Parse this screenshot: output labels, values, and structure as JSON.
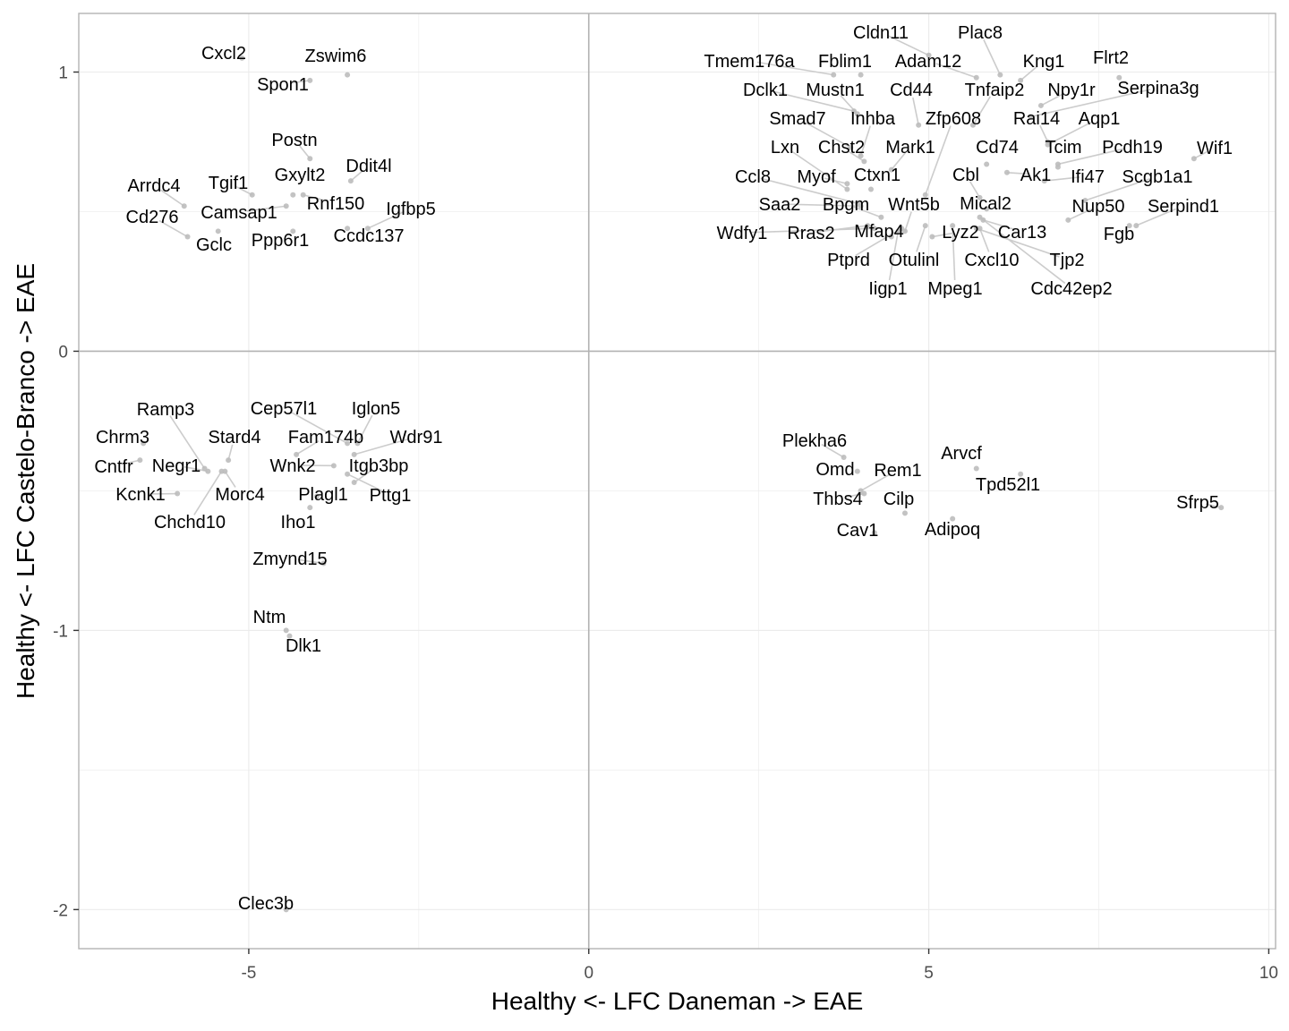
{
  "chart_data": {
    "type": "scatter",
    "xlabel": "Healthy <- LFC Daneman -> EAE",
    "ylabel": "Healthy <- LFC Castelo-Branco -> EAE",
    "xlim": [
      -7.5,
      10.1
    ],
    "ylim": [
      -2.14,
      1.21
    ],
    "x_ticks": [
      -5,
      0,
      5,
      10
    ],
    "x_tick_labels": [
      "-5",
      "0",
      "5",
      "10"
    ],
    "y_ticks": [
      1,
      0,
      -1,
      -2
    ],
    "y_tick_labels": [
      "1",
      "0",
      "-1",
      "-2"
    ],
    "grid": true,
    "reference_lines": {
      "x": 0,
      "y": 0
    },
    "colors": {
      "point": "#bdbdbd",
      "grid": "#ebebeb",
      "zero_line": "#b3b3b3",
      "panel_border": "#b3b3b3",
      "leader": "#cccccc"
    },
    "points": [
      {
        "label": "Cxcl2",
        "x": -5.1,
        "y": 1.05
      },
      {
        "label": "Zswim6",
        "x": -3.55,
        "y": 0.99
      },
      {
        "label": "Spon1",
        "x": -4.1,
        "y": 0.97
      },
      {
        "label": "Postn",
        "x": -4.1,
        "y": 0.69
      },
      {
        "label": "Ddit4l",
        "x": -3.5,
        "y": 0.61
      },
      {
        "label": "Arrdc4",
        "x": -5.95,
        "y": 0.52
      },
      {
        "label": "Tgif1",
        "x": -4.95,
        "y": 0.56
      },
      {
        "label": "Gxylt2",
        "x": -4.35,
        "y": 0.56
      },
      {
        "label": "Rnf150",
        "x": -4.2,
        "y": 0.56
      },
      {
        "label": "Camsap1",
        "x": -4.45,
        "y": 0.52
      },
      {
        "label": "Igfbp5",
        "x": -3.25,
        "y": 0.44
      },
      {
        "label": "Cd276",
        "x": -5.9,
        "y": 0.41
      },
      {
        "label": "Gclc",
        "x": -5.45,
        "y": 0.43
      },
      {
        "label": "Ppp6r1",
        "x": -4.35,
        "y": 0.43
      },
      {
        "label": "Ccdc137",
        "x": -3.55,
        "y": 0.44
      },
      {
        "label": "Ramp3",
        "x": -5.65,
        "y": -0.42
      },
      {
        "label": "Chrm3",
        "x": -6.55,
        "y": -0.33
      },
      {
        "label": "Cntfr",
        "x": -6.6,
        "y": -0.39
      },
      {
        "label": "Negr1",
        "x": -5.6,
        "y": -0.43
      },
      {
        "label": "Kcnk1",
        "x": -6.05,
        "y": -0.51
      },
      {
        "label": "Stard4",
        "x": -5.3,
        "y": -0.39
      },
      {
        "label": "Morc4",
        "x": -5.35,
        "y": -0.43
      },
      {
        "label": "Chchd10",
        "x": -5.4,
        "y": -0.43
      },
      {
        "label": "Cep57l1",
        "x": -3.55,
        "y": -0.33
      },
      {
        "label": "Iglon5",
        "x": -3.4,
        "y": -0.33
      },
      {
        "label": "Fam174b",
        "x": -4.3,
        "y": -0.37
      },
      {
        "label": "Wdr91",
        "x": -3.45,
        "y": -0.37
      },
      {
        "label": "Wnk2",
        "x": -3.75,
        "y": -0.41
      },
      {
        "label": "Itgb3bp",
        "x": -3.45,
        "y": -0.47
      },
      {
        "label": "Plagl1",
        "x": -4.0,
        "y": -0.52
      },
      {
        "label": "Pttg1",
        "x": -3.55,
        "y": -0.44
      },
      {
        "label": "Iho1",
        "x": -4.1,
        "y": -0.56
      },
      {
        "label": "Zmynd15",
        "x": -3.9,
        "y": -0.76
      },
      {
        "label": "Ntm",
        "x": -4.45,
        "y": -1.0
      },
      {
        "label": "Dlk1",
        "x": -4.4,
        "y": -1.02
      },
      {
        "label": "Clec3b",
        "x": -4.45,
        "y": -2.0
      },
      {
        "label": "Cldn11",
        "x": 5.0,
        "y": 1.06
      },
      {
        "label": "Plac8",
        "x": 6.05,
        "y": 0.99
      },
      {
        "label": "Tmem176a",
        "x": 3.6,
        "y": 0.99
      },
      {
        "label": "Fblim1",
        "x": 4.0,
        "y": 0.99
      },
      {
        "label": "Adam12",
        "x": 5.7,
        "y": 0.98
      },
      {
        "label": "Kng1",
        "x": 6.35,
        "y": 0.97
      },
      {
        "label": "Flrt2",
        "x": 7.8,
        "y": 0.98
      },
      {
        "label": "Dclk1",
        "x": 3.9,
        "y": 0.86
      },
      {
        "label": "Mustn1",
        "x": 3.95,
        "y": 0.85
      },
      {
        "label": "Cd44",
        "x": 4.85,
        "y": 0.81
      },
      {
        "label": "Tnfaip2",
        "x": 5.65,
        "y": 0.81
      },
      {
        "label": "Npy1r",
        "x": 6.65,
        "y": 0.88
      },
      {
        "label": "Serpina3g",
        "x": 6.5,
        "y": 0.84
      },
      {
        "label": "Smad7",
        "x": 3.85,
        "y": 0.73
      },
      {
        "label": "Inhba",
        "x": 4.0,
        "y": 0.7
      },
      {
        "label": "Zfp608",
        "x": 4.95,
        "y": 0.56
      },
      {
        "label": "Rai14",
        "x": 6.75,
        "y": 0.75
      },
      {
        "label": "Aqp1",
        "x": 6.75,
        "y": 0.74
      },
      {
        "label": "Lxn",
        "x": 3.8,
        "y": 0.58
      },
      {
        "label": "Chst2",
        "x": 4.05,
        "y": 0.68
      },
      {
        "label": "Mark1",
        "x": 4.45,
        "y": 0.65
      },
      {
        "label": "Cd74",
        "x": 5.85,
        "y": 0.67
      },
      {
        "label": "Tcim",
        "x": 6.9,
        "y": 0.66
      },
      {
        "label": "Pcdh19",
        "x": 6.9,
        "y": 0.67
      },
      {
        "label": "Wif1",
        "x": 8.9,
        "y": 0.69
      },
      {
        "label": "Ccl8",
        "x": 3.95,
        "y": 0.53
      },
      {
        "label": "Myof",
        "x": 3.8,
        "y": 0.6
      },
      {
        "label": "Ctxn1",
        "x": 4.15,
        "y": 0.58
      },
      {
        "label": "Cbl",
        "x": 5.75,
        "y": 0.55
      },
      {
        "label": "Ak1",
        "x": 6.15,
        "y": 0.64
      },
      {
        "label": "Ifi47",
        "x": 6.7,
        "y": 0.61
      },
      {
        "label": "Scgb1a1",
        "x": 7.3,
        "y": 0.54
      },
      {
        "label": "Saa2",
        "x": 4.0,
        "y": 0.52
      },
      {
        "label": "Bpgm",
        "x": 4.3,
        "y": 0.48
      },
      {
        "label": "Wnt5b",
        "x": 4.65,
        "y": 0.43
      },
      {
        "label": "Mical2",
        "x": 5.85,
        "y": 0.51
      },
      {
        "label": "Nup50",
        "x": 7.05,
        "y": 0.47
      },
      {
        "label": "Serpind1",
        "x": 8.05,
        "y": 0.45
      },
      {
        "label": "Wdfy1",
        "x": 4.2,
        "y": 0.44
      },
      {
        "label": "Rras2",
        "x": 4.1,
        "y": 0.45
      },
      {
        "label": "Mfap4",
        "x": 4.45,
        "y": 0.41
      },
      {
        "label": "Lyz2",
        "x": 5.05,
        "y": 0.41
      },
      {
        "label": "Car13",
        "x": 5.8,
        "y": 0.47
      },
      {
        "label": "Fgb",
        "x": 7.95,
        "y": 0.45
      },
      {
        "label": "Ptprd",
        "x": 4.6,
        "y": 0.44
      },
      {
        "label": "Otulinl",
        "x": 4.95,
        "y": 0.45
      },
      {
        "label": "Cxcl10",
        "x": 5.75,
        "y": 0.44
      },
      {
        "label": "Tjp2",
        "x": 5.7,
        "y": 0.44
      },
      {
        "label": "Iigp1",
        "x": 4.55,
        "y": 0.43
      },
      {
        "label": "Mpeg1",
        "x": 5.35,
        "y": 0.45
      },
      {
        "label": "Cdc42ep2",
        "x": 5.75,
        "y": 0.48
      },
      {
        "label": "Plekha6",
        "x": 3.75,
        "y": -0.38
      },
      {
        "label": "Omd",
        "x": 3.95,
        "y": -0.43
      },
      {
        "label": "Rem1",
        "x": 4.0,
        "y": -0.5
      },
      {
        "label": "Arvcf",
        "x": 5.7,
        "y": -0.42
      },
      {
        "label": "Tpd52l1",
        "x": 6.35,
        "y": -0.44
      },
      {
        "label": "Thbs4",
        "x": 4.05,
        "y": -0.51
      },
      {
        "label": "Cilp",
        "x": 4.65,
        "y": -0.58
      },
      {
        "label": "Adipoq",
        "x": 5.35,
        "y": -0.6
      },
      {
        "label": "Sfrp5",
        "x": 9.3,
        "y": -0.56
      },
      {
        "label": "Cav1",
        "x": 4.2,
        "y": -0.65
      }
    ]
  }
}
